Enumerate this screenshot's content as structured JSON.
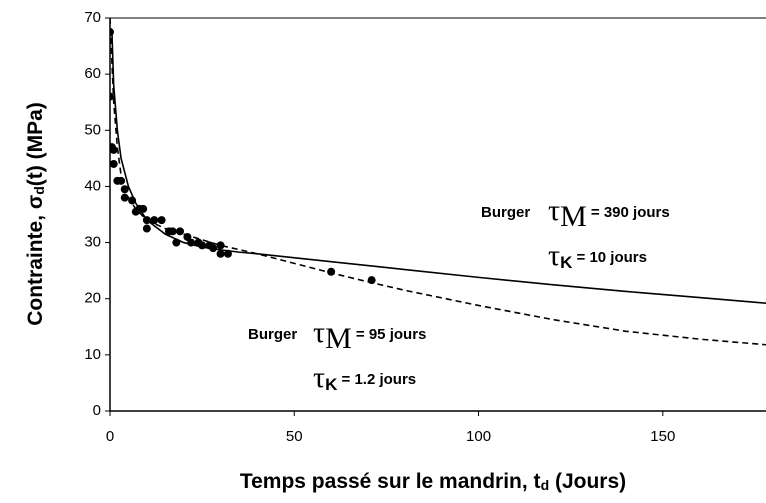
{
  "chart_data": {
    "type": "scatter",
    "x_label": {
      "main": "Temps passé sur le mandrin, t",
      "sub": "d",
      "rest": " (Jours)"
    },
    "y_label": {
      "main": "Contrainte, σ",
      "sub": "d",
      "rest": "(t)  (MPa)"
    },
    "xlim": [
      0,
      178
    ],
    "ylim": [
      0,
      70
    ],
    "xticks": [
      0,
      50,
      100,
      150
    ],
    "yticks": [
      0,
      10,
      20,
      30,
      40,
      50,
      60,
      70
    ],
    "series": [
      {
        "style": "markers",
        "color": "#000000",
        "x": [
          0,
          0,
          0.5,
          1,
          1,
          2,
          3,
          4,
          4,
          6,
          7,
          8,
          9,
          10,
          10,
          12,
          14,
          16,
          17,
          18,
          19,
          21,
          22,
          24,
          25,
          27,
          28,
          30,
          30,
          32,
          60,
          71
        ],
        "values": [
          67.5,
          56,
          47,
          46.5,
          44,
          41,
          41,
          39.5,
          38,
          37.5,
          35.5,
          36,
          36,
          34,
          32.5,
          34,
          34,
          32,
          32,
          30,
          32,
          31,
          30,
          30,
          29.5,
          29.5,
          29,
          29.5,
          28,
          28,
          24.8,
          23.3
        ]
      },
      {
        "style": "solid",
        "color": "#000000",
        "x": [
          0.5,
          1,
          2,
          3,
          5,
          7,
          10,
          15,
          20,
          25,
          30,
          35,
          40,
          60,
          80,
          100,
          120,
          140,
          160,
          178
        ],
        "values": [
          68,
          58,
          50,
          45,
          40,
          37,
          34,
          31.5,
          30,
          29.2,
          28.7,
          28.3,
          28,
          26.6,
          25.2,
          23.8,
          22.5,
          21.3,
          20.2,
          19.2
        ]
      },
      {
        "style": "dashed",
        "color": "#000000",
        "x": [
          0,
          1,
          2,
          3,
          5,
          7,
          10,
          15,
          20,
          30,
          40,
          50,
          60,
          70,
          80,
          100,
          120,
          140,
          160,
          178
        ],
        "values": [
          70,
          55,
          47,
          42,
          38,
          36,
          34,
          32.5,
          31.5,
          29.5,
          28,
          26.3,
          24.6,
          23,
          21.5,
          18.8,
          16.3,
          14.2,
          12.8,
          11.8
        ]
      }
    ],
    "annotations": [
      {
        "label": "Burger",
        "symbol": "τ",
        "subscript": "M",
        "text": " = 390 jours"
      },
      {
        "symbol": "τ",
        "subscript": "K",
        "text": " = 10 jours"
      },
      {
        "label": "Burger",
        "symbol": "τ",
        "subscript": "M",
        "text": " = 95 jours"
      },
      {
        "symbol": "τ",
        "subscript": "K",
        "text": " = 1.2 jours"
      }
    ]
  }
}
